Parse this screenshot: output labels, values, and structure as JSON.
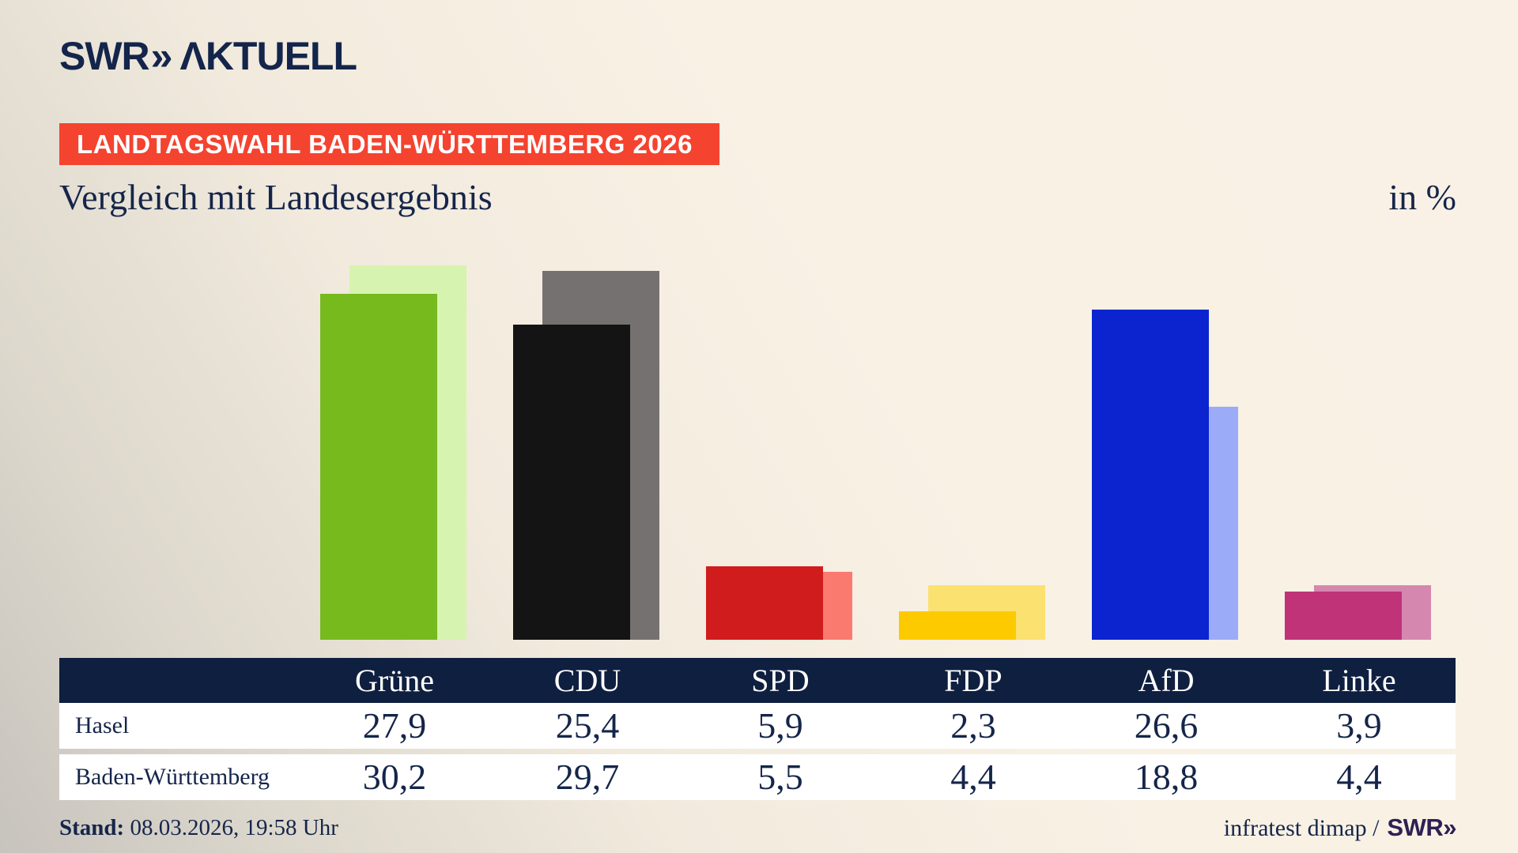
{
  "logo": {
    "brand": "SWR",
    "chevron": "»",
    "suffix": "ΛKTUELL"
  },
  "banner": {
    "text": "LANDTAGSWAHL BADEN-WÜRTTEMBERG 2026",
    "bg_color": "#f4432f"
  },
  "title": "Vergleich mit Landesergebnis",
  "unit_label": "in %",
  "chart_data": {
    "type": "bar",
    "categories": [
      "Grüne",
      "CDU",
      "SPD",
      "FDP",
      "AfD",
      "Linke"
    ],
    "series": [
      {
        "name": "Hasel",
        "role": "foreground",
        "values": [
          27.9,
          25.4,
          5.9,
          2.3,
          26.6,
          3.9
        ]
      },
      {
        "name": "Baden-Württemberg",
        "role": "background",
        "values": [
          30.2,
          29.7,
          5.5,
          4.4,
          18.8,
          4.4
        ]
      }
    ],
    "party_colors": [
      {
        "party": "Grüne",
        "main": "#77ba1d",
        "light": "#d6f4af"
      },
      {
        "party": "CDU",
        "main": "#141414",
        "light": "#757170"
      },
      {
        "party": "SPD",
        "main": "#d01c1c",
        "light": "#fa7a70"
      },
      {
        "party": "FDP",
        "main": "#fdca00",
        "light": "#fbe170"
      },
      {
        "party": "AfD",
        "main": "#0b24d0",
        "light": "#9cabf7"
      },
      {
        "party": "Linke",
        "main": "#c03378",
        "light": "#d687b0"
      }
    ],
    "unit": "%",
    "ylim": [
      0,
      35
    ],
    "grid": false,
    "legend_position": "none (series identified via table rows below)"
  },
  "table": {
    "columns": [
      "Grüne",
      "CDU",
      "SPD",
      "FDP",
      "AfD",
      "Linke"
    ],
    "row_labels": [
      "Hasel",
      "Baden-Württemberg"
    ],
    "rows": [
      [
        "27,9",
        "25,4",
        "5,9",
        "2,3",
        "26,6",
        "3,9"
      ],
      [
        "30,2",
        "29,7",
        "5,5",
        "4,4",
        "18,8",
        "4,4"
      ]
    ]
  },
  "footer": {
    "stand_label": "Stand:",
    "stand_value": "08.03.2026, 19:58 Uhr",
    "source": "infratest dimap /",
    "source_brand": "SWR»"
  },
  "colors": {
    "navy_text": "#15254a",
    "table_header_bg": "#0f1f40",
    "source_brand_color": "#2e2052",
    "background_cream": "#f8f1e4",
    "background_gray": "#c7c3bd"
  }
}
